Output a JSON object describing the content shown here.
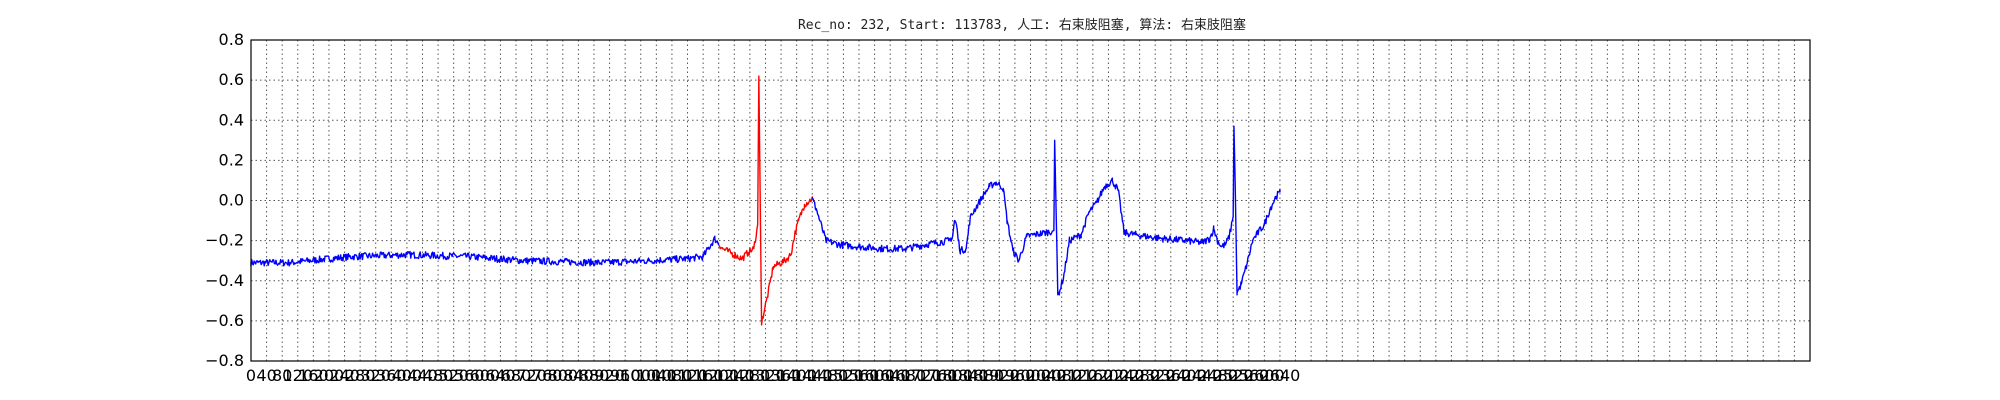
{
  "chart_data": {
    "type": "line",
    "title": "Rec_no: 232, Start: 113783, 人工: 右束肢阻塞, 算法: 右束肢阻塞",
    "xlabel": "",
    "ylabel": "",
    "xlim": [
      0,
      4000
    ],
    "ylim": [
      -0.8,
      0.8
    ],
    "yticks": [
      -0.8,
      -0.6,
      -0.4,
      -0.2,
      0.0,
      0.2,
      0.4,
      0.6,
      0.8
    ],
    "ytick_labels": [
      "−0.8",
      "−0.6",
      "−0.4",
      "−0.2",
      "0.0",
      "0.2",
      "0.4",
      "0.6",
      "0.8"
    ],
    "xtick_step": 40,
    "xticks_labeled_max": 2640,
    "grid": true,
    "colors": {
      "normal": "#0000ff",
      "highlight": "#ff0000",
      "grid": "#555555"
    },
    "x_end": 2640,
    "highlight_range": [
      1200,
      1440
    ],
    "keypoints": [
      [
        0,
        -0.31
      ],
      [
        100,
        -0.31
      ],
      [
        200,
        -0.29
      ],
      [
        260,
        -0.28
      ],
      [
        400,
        -0.27
      ],
      [
        560,
        -0.28
      ],
      [
        700,
        -0.3
      ],
      [
        900,
        -0.31
      ],
      [
        1020,
        -0.3
      ],
      [
        1120,
        -0.29
      ],
      [
        1160,
        -0.28
      ],
      [
        1180,
        -0.22
      ],
      [
        1190,
        -0.19
      ],
      [
        1210,
        -0.24
      ],
      [
        1260,
        -0.29
      ],
      [
        1275,
        -0.26
      ],
      [
        1290,
        -0.24
      ],
      [
        1300,
        -0.12
      ],
      [
        1303,
        0.62
      ],
      [
        1306,
        0.1
      ],
      [
        1310,
        -0.62
      ],
      [
        1313,
        -0.58
      ],
      [
        1325,
        -0.48
      ],
      [
        1340,
        -0.33
      ],
      [
        1370,
        -0.3
      ],
      [
        1385,
        -0.27
      ],
      [
        1395,
        -0.17
      ],
      [
        1405,
        -0.1
      ],
      [
        1420,
        -0.02
      ],
      [
        1440,
        0.01
      ],
      [
        1450,
        -0.04
      ],
      [
        1475,
        -0.2
      ],
      [
        1510,
        -0.22
      ],
      [
        1560,
        -0.23
      ],
      [
        1620,
        -0.24
      ],
      [
        1680,
        -0.24
      ],
      [
        1730,
        -0.22
      ],
      [
        1760,
        -0.21
      ],
      [
        1790,
        -0.2
      ],
      [
        1800,
        -0.18
      ],
      [
        1805,
        -0.1
      ],
      [
        1810,
        -0.12
      ],
      [
        1815,
        -0.2
      ],
      [
        1820,
        -0.25
      ],
      [
        1835,
        -0.24
      ],
      [
        1845,
        -0.09
      ],
      [
        1855,
        -0.05
      ],
      [
        1865,
        -0.02
      ],
      [
        1880,
        0.03
      ],
      [
        1895,
        0.07
      ],
      [
        1910,
        0.09
      ],
      [
        1920,
        0.08
      ],
      [
        1930,
        0.06
      ],
      [
        1940,
        -0.1
      ],
      [
        1955,
        -0.25
      ],
      [
        1970,
        -0.3
      ],
      [
        1990,
        -0.18
      ],
      [
        2010,
        -0.17
      ],
      [
        2040,
        -0.16
      ],
      [
        2060,
        -0.15
      ],
      [
        2062,
        0.3
      ],
      [
        2065,
        0.02
      ],
      [
        2070,
        -0.47
      ],
      [
        2075,
        -0.45
      ],
      [
        2085,
        -0.38
      ],
      [
        2100,
        -0.2
      ],
      [
        2130,
        -0.17
      ],
      [
        2150,
        -0.06
      ],
      [
        2170,
        -0.01
      ],
      [
        2190,
        0.07
      ],
      [
        2210,
        0.1
      ],
      [
        2225,
        0.05
      ],
      [
        2240,
        -0.16
      ],
      [
        2270,
        -0.17
      ],
      [
        2300,
        -0.18
      ],
      [
        2340,
        -0.19
      ],
      [
        2400,
        -0.2
      ],
      [
        2440,
        -0.21
      ],
      [
        2460,
        -0.19
      ],
      [
        2470,
        -0.14
      ],
      [
        2480,
        -0.2
      ],
      [
        2490,
        -0.23
      ],
      [
        2500,
        -0.22
      ],
      [
        2510,
        -0.18
      ],
      [
        2520,
        -0.08
      ],
      [
        2522,
        0.37
      ],
      [
        2525,
        0.1
      ],
      [
        2530,
        -0.46
      ],
      [
        2540,
        -0.42
      ],
      [
        2555,
        -0.32
      ],
      [
        2570,
        -0.2
      ],
      [
        2580,
        -0.17
      ],
      [
        2600,
        -0.12
      ],
      [
        2615,
        -0.04
      ],
      [
        2630,
        0.02
      ],
      [
        2640,
        0.04
      ]
    ]
  }
}
